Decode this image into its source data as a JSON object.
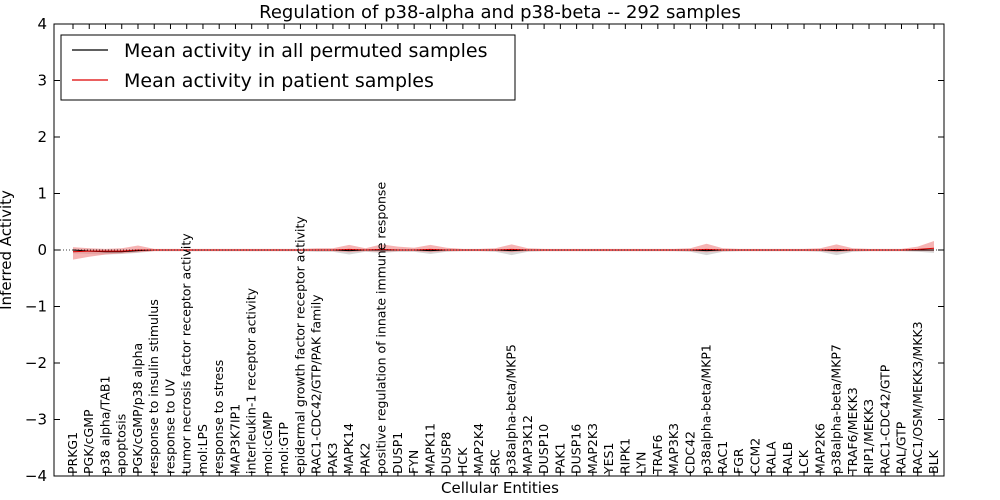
{
  "chart_data": {
    "type": "line",
    "title": "Regulation of p38-alpha and p38-beta -- 292 samples",
    "xlabel": "Cellular Entities",
    "ylabel": "Inferred Activity",
    "ylim": [
      -4,
      4
    ],
    "yticks": [
      -4,
      -3,
      -2,
      -1,
      0,
      1,
      2,
      3,
      4
    ],
    "ytick_labels": [
      "−4",
      "−3",
      "−2",
      "−1",
      "0",
      "1",
      "2",
      "3",
      "4"
    ],
    "grid": false,
    "legend_position": "top-left",
    "categories": [
      "PRKG1",
      "PGK/cGMP",
      "p38 alpha/TAB1",
      "apoptosis",
      "PGK/cGMP/p38 alpha",
      "response to insulin stimulus",
      "response to UV",
      "tumor necrosis factor receptor activity",
      "mol:LPS",
      "response to stress",
      "MAP3K7IP1",
      "interleukin-1 receptor activity",
      "mol:cGMP",
      "mol:GTP",
      "epidermal growth factor receptor activity",
      "RAC1-CDC42/GTP/PAK family",
      "PAK3",
      "MAPK14",
      "PAK2",
      "positive regulation of innate immune response",
      "DUSP1",
      "FYN",
      "MAPK11",
      "DUSP8",
      "HCK",
      "MAP2K4",
      "SRC",
      "p38alpha-beta/MKP5",
      "MAP3K12",
      "DUSP10",
      "PAK1",
      "DUSP16",
      "MAP2K3",
      "YES1",
      "RIPK1",
      "LYN",
      "TRAF6",
      "MAP3K3",
      "CDC42",
      "p38alpha-beta/MKP1",
      "RAC1",
      "FGR",
      "CCM2",
      "RALA",
      "RALB",
      "LCK",
      "MAP2K6",
      "p38alpha-beta/MKP7",
      "TRAF6/MEKK3",
      "RIP1/MEKK3",
      "RAC1-CDC42/GTP",
      "RAL/GTP",
      "RAC1/OSM/MEKK3/MKK3",
      "BLK"
    ],
    "series": [
      {
        "name": "Mean activity in all permuted samples",
        "color": "#000000",
        "band_color": "#c8c8c8",
        "values": [
          0.0,
          -0.02,
          -0.03,
          -0.03,
          -0.01,
          0.0,
          0.0,
          0.0,
          0.0,
          0.0,
          0.0,
          0.0,
          0.0,
          0.0,
          0.0,
          0.0,
          0.0,
          -0.01,
          0.0,
          0.0,
          0.0,
          0.0,
          -0.01,
          0.0,
          0.0,
          0.0,
          0.0,
          -0.01,
          0.0,
          0.0,
          0.0,
          0.0,
          0.0,
          0.0,
          0.0,
          0.0,
          0.0,
          0.0,
          0.0,
          -0.01,
          0.0,
          0.0,
          0.0,
          0.0,
          0.0,
          0.0,
          0.0,
          -0.01,
          0.0,
          0.0,
          0.0,
          0.0,
          0.0,
          0.0
        ],
        "band_upper": [
          0.02,
          0.02,
          0.01,
          0.01,
          0.01,
          0.01,
          0.01,
          0.01,
          0.01,
          0.01,
          0.01,
          0.01,
          0.01,
          0.01,
          0.01,
          0.01,
          0.01,
          0.01,
          0.01,
          0.01,
          0.01,
          0.01,
          0.01,
          0.01,
          0.01,
          0.01,
          0.01,
          0.01,
          0.01,
          0.01,
          0.01,
          0.01,
          0.01,
          0.01,
          0.01,
          0.01,
          0.01,
          0.01,
          0.01,
          0.01,
          0.01,
          0.01,
          0.01,
          0.01,
          0.01,
          0.01,
          0.01,
          0.01,
          0.01,
          0.01,
          0.01,
          0.01,
          0.01,
          0.01
        ],
        "band_lower": [
          -0.06,
          -0.07,
          -0.08,
          -0.07,
          -0.05,
          -0.02,
          -0.02,
          -0.02,
          -0.02,
          -0.02,
          -0.02,
          -0.02,
          -0.02,
          -0.02,
          -0.02,
          -0.03,
          -0.03,
          -0.08,
          -0.03,
          -0.05,
          -0.03,
          -0.03,
          -0.07,
          -0.03,
          -0.02,
          -0.02,
          -0.03,
          -0.09,
          -0.03,
          -0.02,
          -0.02,
          -0.02,
          -0.02,
          -0.02,
          -0.02,
          -0.02,
          -0.02,
          -0.02,
          -0.03,
          -0.09,
          -0.03,
          -0.02,
          -0.02,
          -0.02,
          -0.02,
          -0.02,
          -0.03,
          -0.09,
          -0.03,
          -0.02,
          -0.02,
          -0.02,
          -0.03,
          -0.05
        ]
      },
      {
        "name": "Mean activity in patient samples",
        "color": "#dd0000",
        "band_color": "#f08080",
        "values": [
          -0.03,
          -0.02,
          -0.02,
          -0.02,
          0.0,
          0.0,
          0.0,
          0.0,
          0.0,
          0.0,
          0.0,
          0.0,
          0.0,
          0.0,
          0.0,
          0.0,
          0.0,
          0.01,
          0.0,
          0.01,
          0.0,
          0.0,
          0.01,
          0.0,
          0.0,
          0.0,
          0.0,
          0.01,
          0.0,
          0.0,
          0.0,
          0.0,
          0.0,
          0.0,
          0.0,
          0.0,
          0.0,
          0.0,
          0.0,
          0.01,
          0.0,
          0.0,
          0.0,
          0.0,
          0.0,
          0.0,
          0.0,
          0.01,
          0.0,
          0.0,
          0.0,
          0.0,
          0.01,
          0.03
        ],
        "band_upper": [
          0.05,
          0.03,
          0.02,
          0.03,
          0.08,
          0.02,
          0.02,
          0.02,
          0.02,
          0.02,
          0.02,
          0.02,
          0.02,
          0.02,
          0.02,
          0.03,
          0.03,
          0.09,
          0.03,
          0.1,
          0.06,
          0.04,
          0.09,
          0.04,
          0.02,
          0.02,
          0.03,
          0.1,
          0.03,
          0.02,
          0.02,
          0.02,
          0.02,
          0.02,
          0.02,
          0.02,
          0.02,
          0.02,
          0.03,
          0.11,
          0.03,
          0.02,
          0.02,
          0.02,
          0.02,
          0.02,
          0.03,
          0.1,
          0.03,
          0.02,
          0.02,
          0.02,
          0.06,
          0.16
        ],
        "band_lower": [
          -0.17,
          -0.12,
          -0.08,
          -0.06,
          -0.04,
          -0.02,
          -0.02,
          -0.02,
          -0.02,
          -0.02,
          -0.02,
          -0.02,
          -0.02,
          -0.02,
          -0.02,
          -0.02,
          -0.02,
          -0.04,
          -0.02,
          -0.03,
          -0.02,
          -0.02,
          -0.04,
          -0.02,
          -0.02,
          -0.02,
          -0.02,
          -0.04,
          -0.02,
          -0.02,
          -0.02,
          -0.02,
          -0.02,
          -0.02,
          -0.02,
          -0.02,
          -0.02,
          -0.02,
          -0.02,
          -0.04,
          -0.02,
          -0.02,
          -0.02,
          -0.02,
          -0.02,
          -0.02,
          -0.02,
          -0.04,
          -0.02,
          -0.02,
          -0.02,
          -0.02,
          -0.02,
          -0.02
        ]
      }
    ]
  }
}
